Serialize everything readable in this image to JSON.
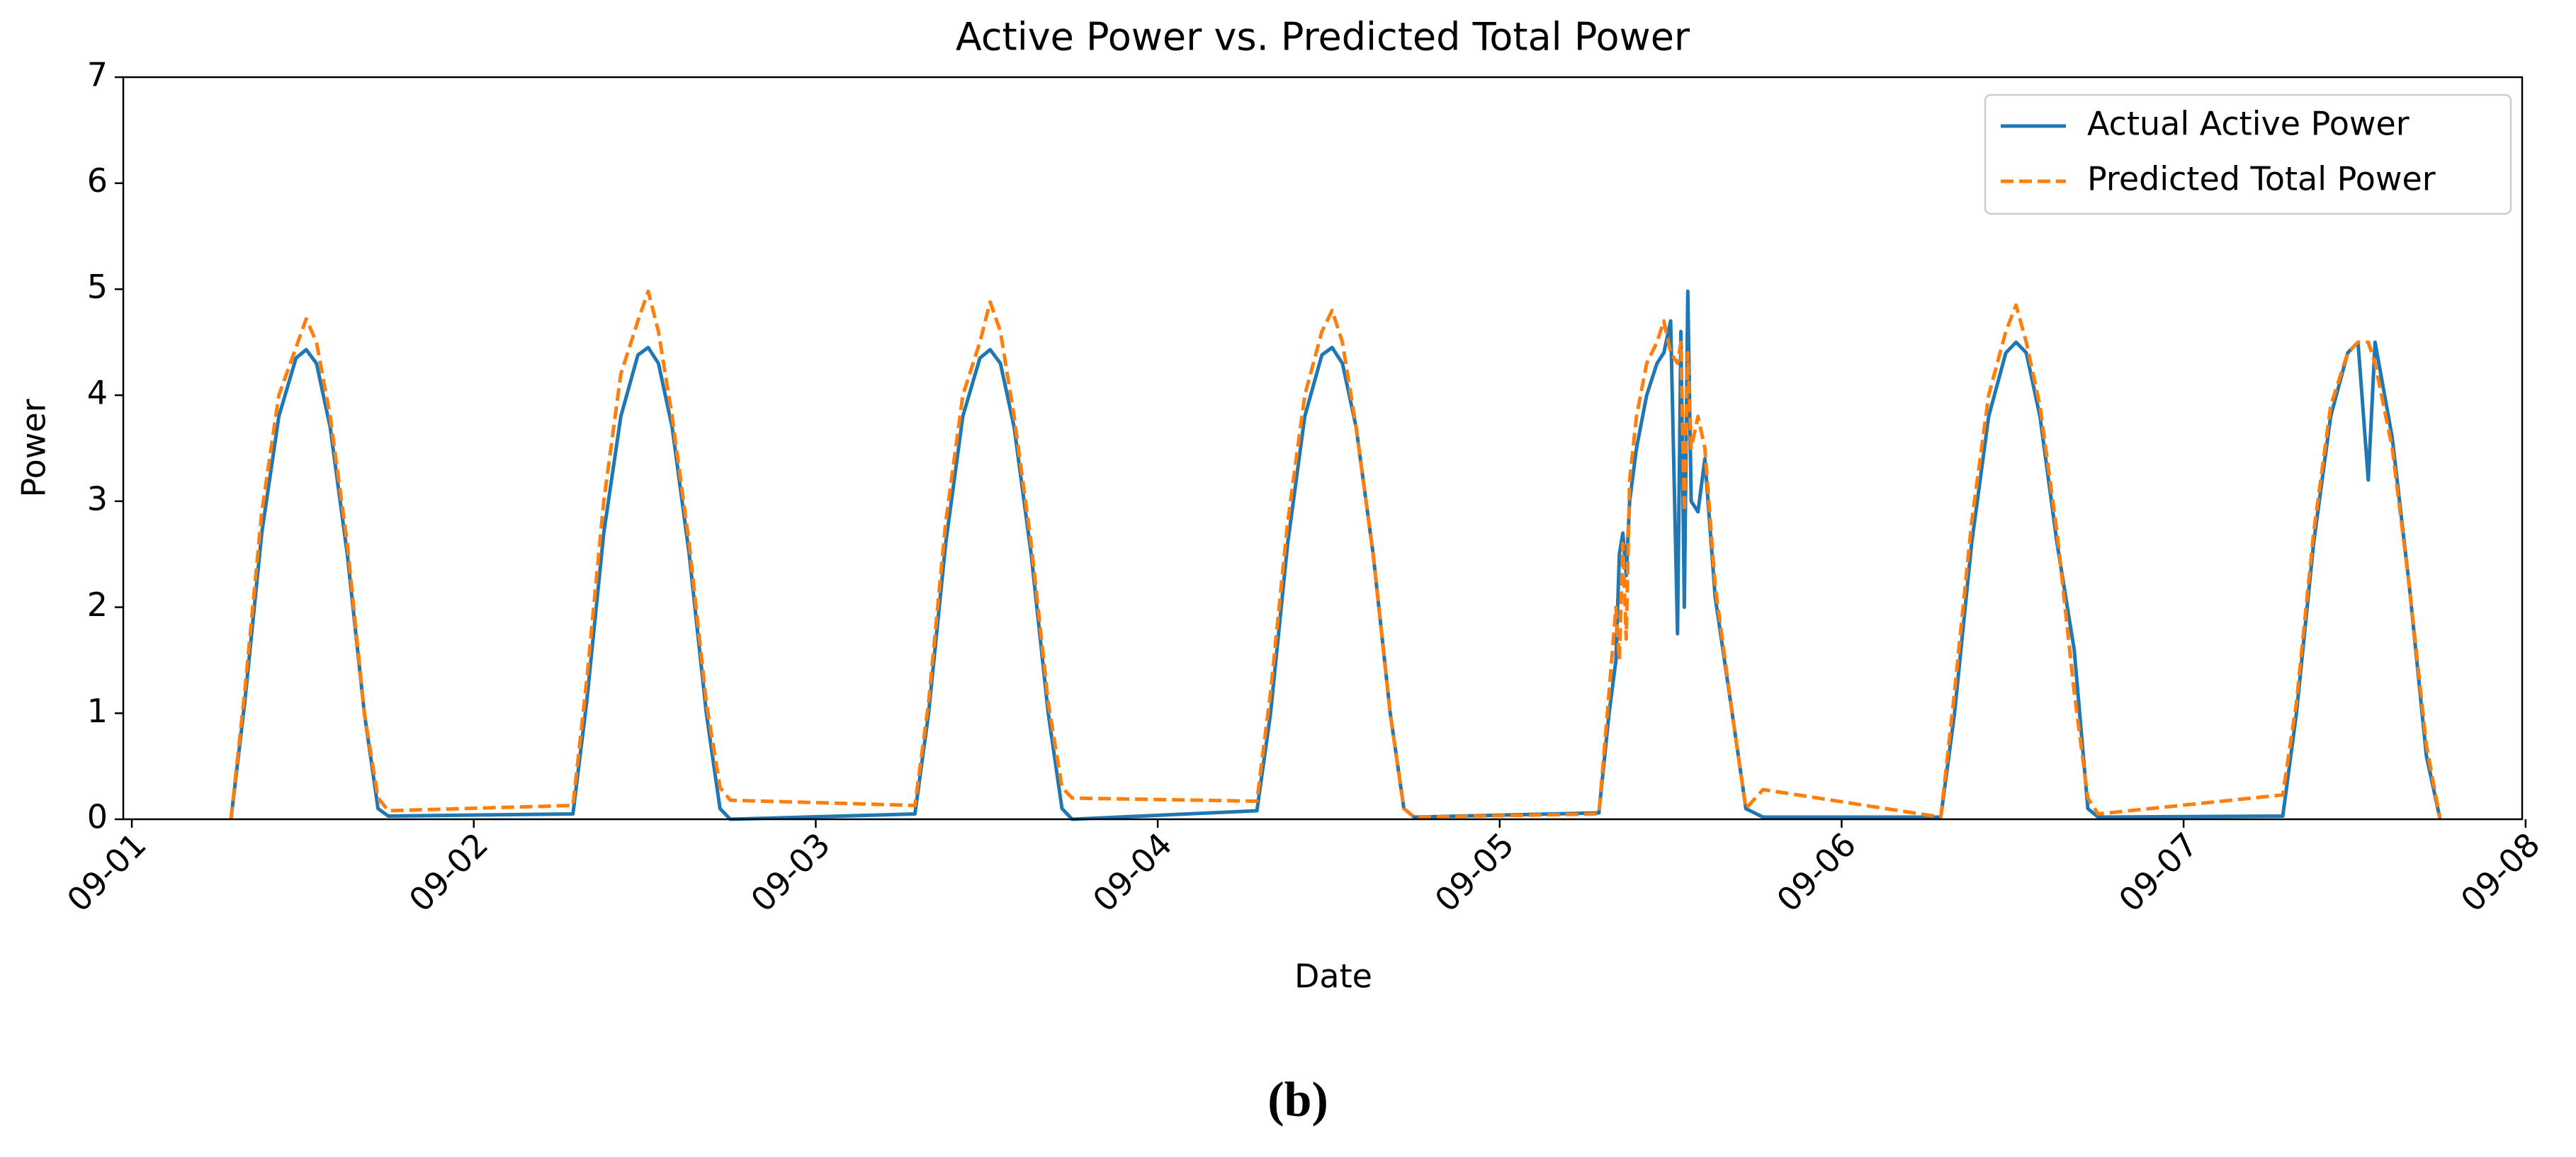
{
  "chart_data": {
    "type": "line",
    "title": "Active Power vs. Predicted Total Power",
    "x_label": "Date",
    "y_label": "Power",
    "x": [
      1.29,
      1.33,
      1.38,
      1.43,
      1.48,
      1.51,
      1.54,
      1.58,
      1.63,
      1.68,
      1.72,
      1.75,
      2.29,
      2.33,
      2.38,
      2.43,
      2.48,
      2.51,
      2.54,
      2.58,
      2.63,
      2.68,
      2.72,
      2.75,
      3.29,
      3.33,
      3.38,
      3.43,
      3.48,
      3.51,
      3.54,
      3.58,
      3.63,
      3.68,
      3.72,
      3.75,
      4.29,
      4.33,
      4.38,
      4.43,
      4.48,
      4.51,
      4.54,
      4.58,
      4.63,
      4.68,
      4.72,
      4.75,
      5.29,
      5.32,
      5.34,
      5.35,
      5.36,
      5.37,
      5.38,
      5.4,
      5.43,
      5.46,
      5.48,
      5.5,
      5.52,
      5.53,
      5.54,
      5.55,
      5.56,
      5.58,
      5.6,
      5.63,
      5.68,
      5.72,
      5.77,
      6.29,
      6.33,
      6.38,
      6.43,
      6.48,
      6.51,
      6.54,
      6.58,
      6.63,
      6.68,
      6.72,
      6.75,
      7.29,
      7.33,
      7.38,
      7.43,
      7.48,
      7.51,
      7.54,
      7.56,
      7.61,
      7.66,
      7.71,
      7.75
    ],
    "series": [
      {
        "name": "Actual Active Power",
        "color": "#1f77b4",
        "style": "solid",
        "values": [
          0,
          1.1,
          2.7,
          3.8,
          4.35,
          4.43,
          4.3,
          3.7,
          2.5,
          1.0,
          0.1,
          0.03,
          0.05,
          1.1,
          2.7,
          3.8,
          4.38,
          4.45,
          4.3,
          3.7,
          2.5,
          1.0,
          0.1,
          0.0,
          0.05,
          1.0,
          2.6,
          3.8,
          4.35,
          4.43,
          4.3,
          3.7,
          2.5,
          1.0,
          0.1,
          0.0,
          0.08,
          1.0,
          2.6,
          3.8,
          4.38,
          4.45,
          4.3,
          3.7,
          2.5,
          1.0,
          0.1,
          0.02,
          0.06,
          1.0,
          1.5,
          2.5,
          2.7,
          2.3,
          3.0,
          3.5,
          4.0,
          4.3,
          4.4,
          4.7,
          1.75,
          4.6,
          2.0,
          4.98,
          3.0,
          2.9,
          3.4,
          2.1,
          1.0,
          0.1,
          0.02,
          0.02,
          1.0,
          2.6,
          3.8,
          4.4,
          4.5,
          4.4,
          3.8,
          2.6,
          1.6,
          0.1,
          0.02,
          0.03,
          1.0,
          2.6,
          3.8,
          4.4,
          4.5,
          3.2,
          4.5,
          3.6,
          2.2,
          0.6,
          0.0
        ]
      },
      {
        "name": "Predicted Total Power",
        "color": "#ff7f0e",
        "style": "dashed",
        "values": [
          0,
          1.2,
          2.9,
          4.0,
          4.45,
          4.72,
          4.5,
          3.8,
          2.6,
          1.0,
          0.2,
          0.08,
          0.13,
          1.3,
          3.0,
          4.2,
          4.7,
          4.98,
          4.6,
          3.8,
          2.6,
          1.1,
          0.3,
          0.18,
          0.13,
          1.1,
          2.8,
          4.0,
          4.5,
          4.88,
          4.6,
          3.8,
          2.6,
          1.1,
          0.3,
          0.2,
          0.17,
          1.2,
          2.8,
          4.0,
          4.6,
          4.8,
          4.5,
          3.7,
          2.5,
          1.0,
          0.1,
          0.02,
          0.05,
          1.2,
          2.0,
          1.5,
          2.6,
          1.7,
          3.2,
          3.8,
          4.3,
          4.5,
          4.7,
          4.4,
          4.3,
          4.5,
          2.9,
          4.4,
          3.5,
          3.8,
          3.5,
          2.2,
          1.0,
          0.1,
          0.28,
          0.02,
          1.2,
          2.8,
          4.0,
          4.6,
          4.85,
          4.5,
          3.9,
          2.7,
          1.2,
          0.2,
          0.05,
          0.23,
          1.1,
          2.7,
          3.9,
          4.4,
          4.5,
          4.5,
          4.3,
          3.5,
          2.2,
          0.7,
          0.0
        ]
      }
    ],
    "xlim": [
      0.975,
      7.99
    ],
    "xticks": [
      {
        "value": 1,
        "label": "09-01"
      },
      {
        "value": 2,
        "label": "09-02"
      },
      {
        "value": 3,
        "label": "09-03"
      },
      {
        "value": 4,
        "label": "09-04"
      },
      {
        "value": 5,
        "label": "09-05"
      },
      {
        "value": 6,
        "label": "09-06"
      },
      {
        "value": 7,
        "label": "09-07"
      },
      {
        "value": 8,
        "label": "09-08"
      }
    ],
    "ylim": [
      0,
      7
    ],
    "yticks": [
      0,
      1,
      2,
      3,
      4,
      5,
      6,
      7
    ],
    "grid": false,
    "legend": "upper right"
  },
  "caption": "(b)"
}
